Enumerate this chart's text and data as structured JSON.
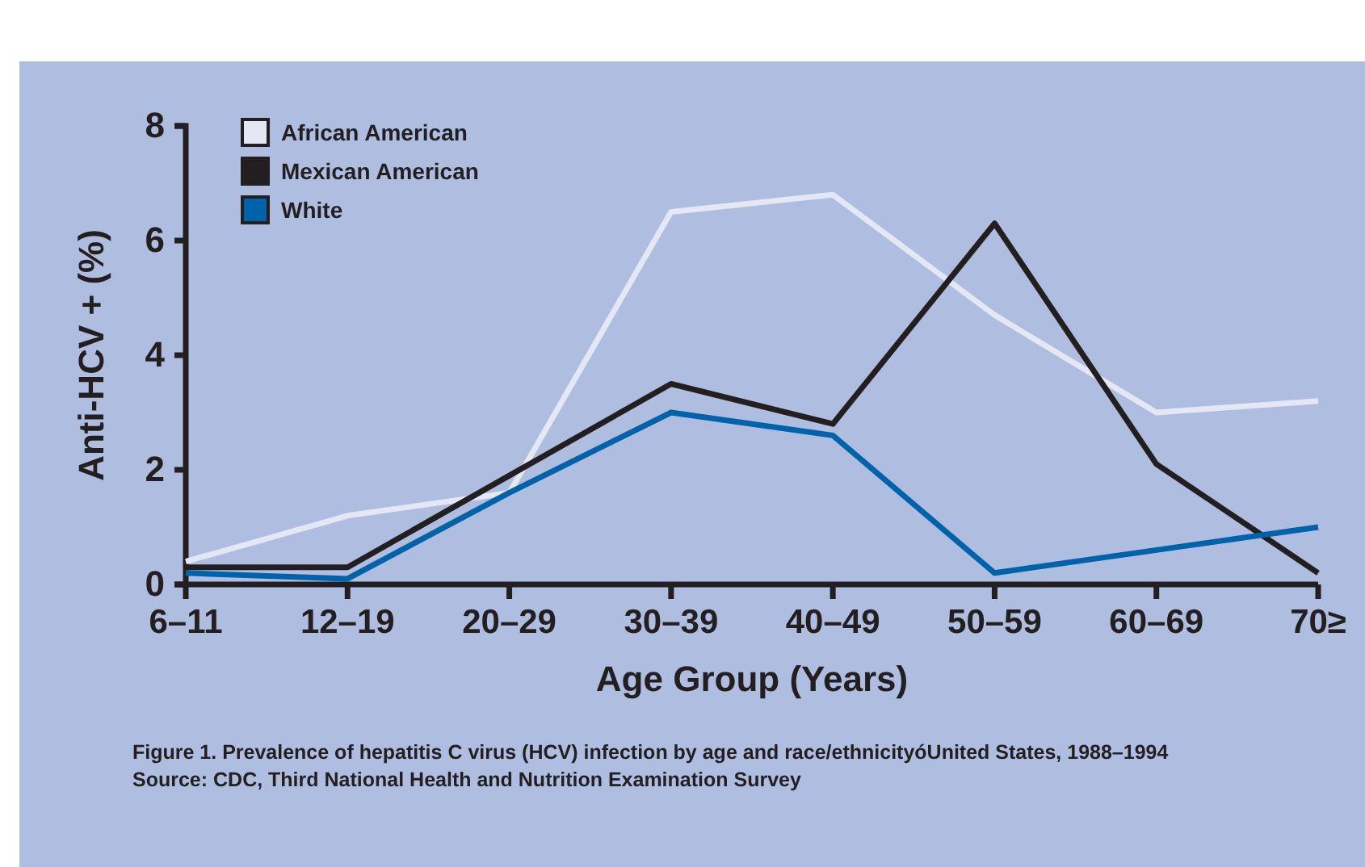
{
  "chart_data": {
    "type": "line",
    "xlabel": "Age Group (Years)",
    "ylabel": "Anti-HCV + (%)",
    "categories": [
      "6–11",
      "12–19",
      "20–29",
      "30–39",
      "40–49",
      "50–59",
      "60–69",
      "70≥"
    ],
    "series": [
      {
        "name": "African American",
        "color": "#e3e8f4",
        "values": [
          0.4,
          1.2,
          1.6,
          6.5,
          6.8,
          4.7,
          3.0,
          3.2
        ]
      },
      {
        "name": "Mexican American",
        "color": "#231f20",
        "values": [
          0.3,
          0.3,
          1.9,
          3.5,
          2.8,
          6.3,
          2.1,
          0.2
        ]
      },
      {
        "name": "White",
        "color": "#0062a8",
        "values": [
          0.2,
          0.1,
          1.6,
          3.0,
          2.6,
          0.2,
          0.6,
          1.0
        ]
      }
    ],
    "ylim": [
      0,
      8
    ],
    "yticks": [
      0,
      2,
      4,
      6,
      8
    ],
    "grid": false,
    "legend": "top left",
    "marker": "none",
    "line_style": "solid",
    "annotations": [
      "Figure 1.  Prevalence of hepatitis C virus (HCV) infection by age and race/ethnicityóUnited States, 1988–1994",
      "Source: CDC, Third National Health and Nutrition Examination Survey"
    ]
  }
}
